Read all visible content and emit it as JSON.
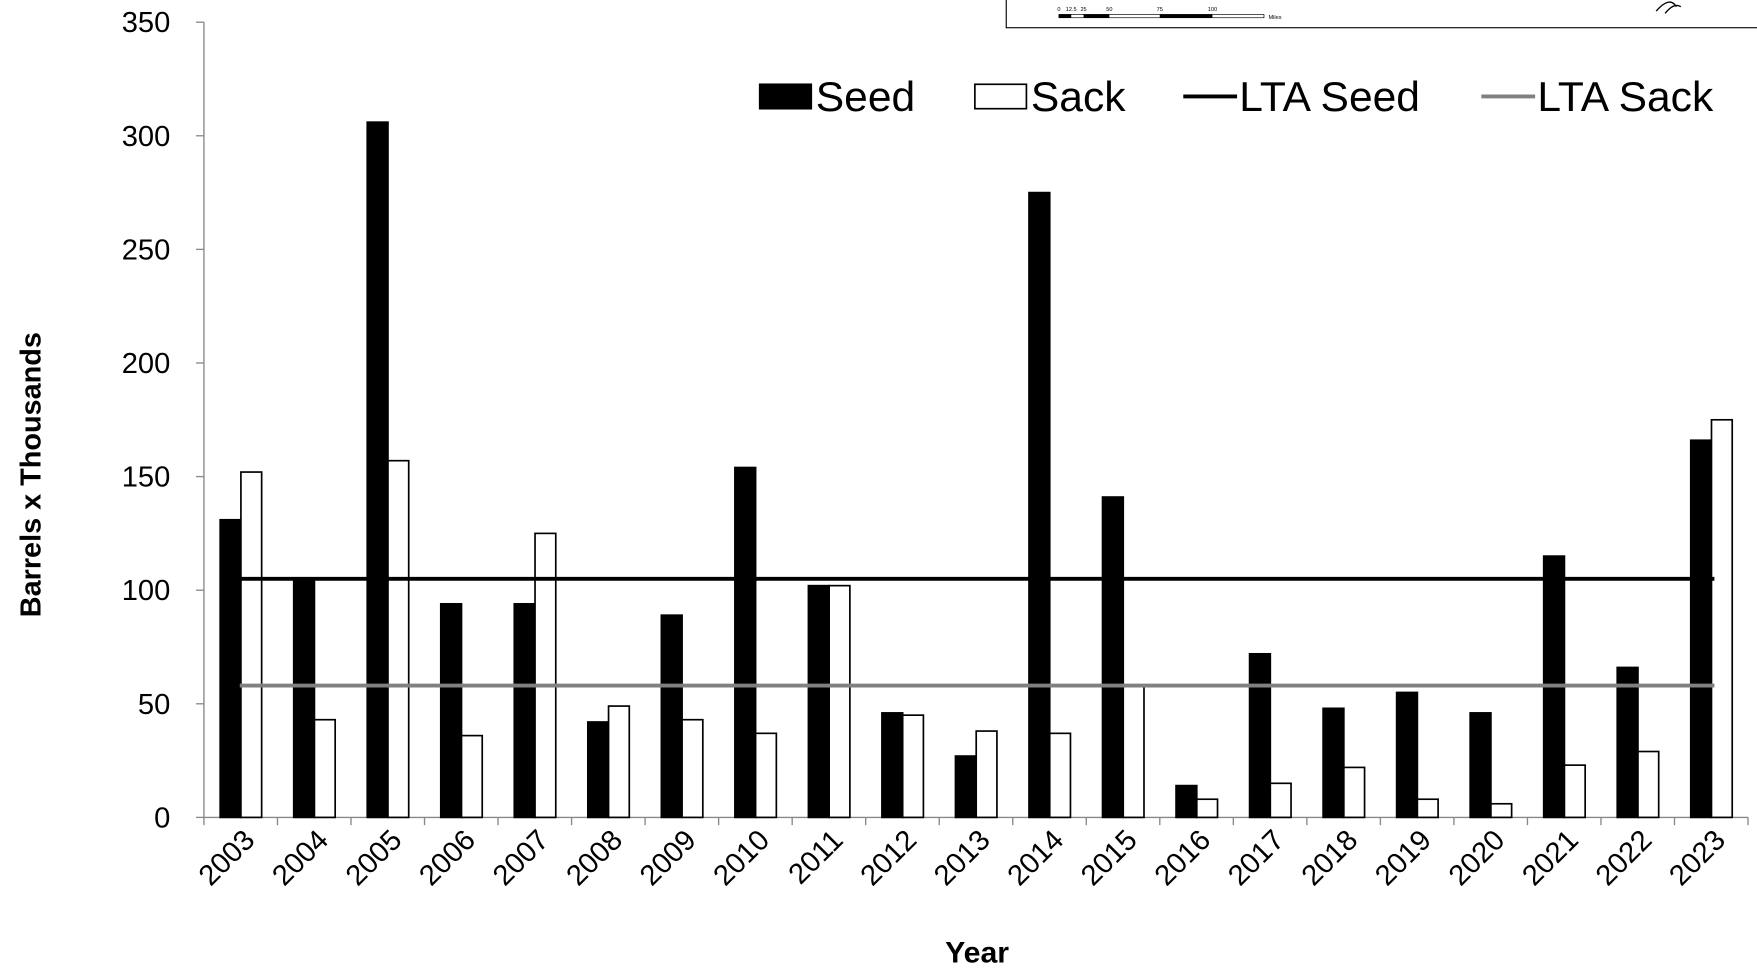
{
  "chart_data": {
    "type": "bar",
    "x_label": "Year",
    "y_label": "Barrels x Thousands",
    "categories": [
      "2003",
      "2004",
      "2005",
      "2006",
      "2007",
      "2008",
      "2009",
      "2010",
      "2011",
      "2012",
      "2013",
      "2014",
      "2015",
      "2016",
      "2017",
      "2018",
      "2019",
      "2020",
      "2021",
      "2022",
      "2023"
    ],
    "series": [
      {
        "name": "Seed",
        "color": "#000000",
        "values": [
          131,
          104,
          306,
          94,
          94,
          42,
          89,
          154,
          102,
          46,
          27,
          275,
          141,
          14,
          72,
          48,
          55,
          46,
          115,
          66,
          166
        ]
      },
      {
        "name": "Sack",
        "color": "#ffffff",
        "values": [
          152,
          43,
          157,
          36,
          125,
          49,
          43,
          37,
          102,
          45,
          38,
          37,
          58,
          8,
          15,
          22,
          8,
          6,
          23,
          29,
          175
        ]
      }
    ],
    "reference_lines": [
      {
        "name": "LTA Seed",
        "color": "#000000",
        "value": 105
      },
      {
        "name": "LTA Sack",
        "color": "#808080",
        "value": 58
      }
    ],
    "ylim": [
      0,
      350
    ],
    "yticks": [
      0,
      50,
      100,
      150,
      200,
      250,
      300,
      350
    ],
    "legend": "top-right",
    "inset_scale_labels": [
      "0",
      "12.5",
      "25",
      "50",
      "75",
      "100",
      "Miles"
    ]
  }
}
